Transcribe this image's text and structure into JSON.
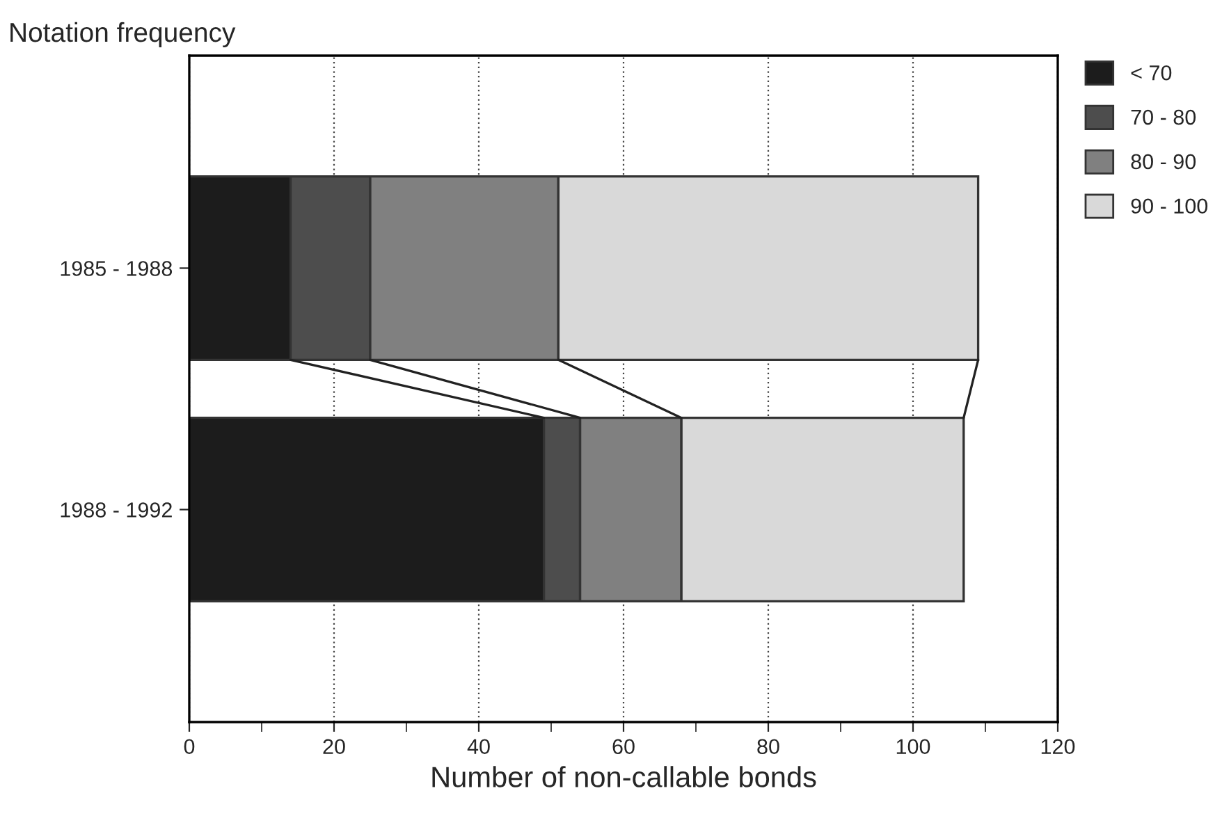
{
  "chart_data": {
    "type": "bar",
    "orientation": "horizontal",
    "stacked": true,
    "title": "Notation frequency",
    "xlabel": "Number of non-callable bonds",
    "categories": [
      "1985 - 1988",
      "1988 - 1992"
    ],
    "series": [
      {
        "name": "< 70",
        "color": "#1c1c1c",
        "values": [
          14,
          49
        ]
      },
      {
        "name": "70 - 80",
        "color": "#4d4d4d",
        "values": [
          11,
          5
        ]
      },
      {
        "name": "80 - 90",
        "color": "#808080",
        "values": [
          26,
          14
        ]
      },
      {
        "name": "90 - 100",
        "color": "#d9d9d9",
        "values": [
          58,
          39
        ]
      }
    ],
    "xlim": [
      0,
      120
    ],
    "xticks": [
      0,
      {
        "value": 10,
        "label": null
      },
      20,
      {
        "value": 30,
        "label": null
      },
      40,
      {
        "value": 50,
        "label": null
      },
      60,
      {
        "value": 70,
        "label": null
      },
      80,
      {
        "value": 90,
        "label": null
      },
      100,
      {
        "value": 110,
        "label": null
      },
      120
    ],
    "grid": "x",
    "legend": "top right"
  }
}
